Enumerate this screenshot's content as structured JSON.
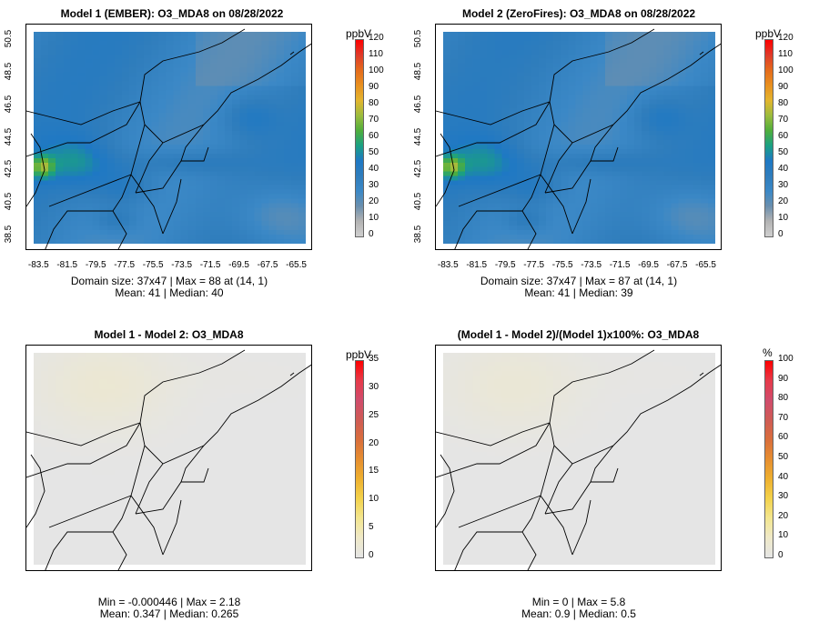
{
  "colors": {
    "scale_blue": [
      "#cfcfcf",
      "#b3b3b3",
      "#6a8fae",
      "#3b88c6",
      "#2f7dbc",
      "#1e78c4",
      "#1aa083",
      "#4fae3c",
      "#9cbc3d",
      "#e3b52e",
      "#e8901f",
      "#e46b1c",
      "#df3b2a",
      "#ff0000"
    ],
    "scale_diff": [
      "#e5e5e5",
      "#efe9c8",
      "#f3e68f",
      "#f3d24b",
      "#eeb02f",
      "#e68e30",
      "#d96e3c",
      "#cf5b55",
      "#d04c6c",
      "#e63a4a",
      "#ff0000"
    ]
  },
  "chart_data": [
    {
      "type": "heatmap",
      "title": "Model 1 (EMBER): O3_MDA8 on 08/28/2022",
      "unit": "ppbV",
      "x_ticks": [
        "-83.5",
        "-81.5",
        "-79.5",
        "-77.5",
        "-75.5",
        "-73.5",
        "-71.5",
        "-69.5",
        "-67.5",
        "-65.5"
      ],
      "y_ticks": [
        "38.5",
        "40.5",
        "42.5",
        "44.5",
        "46.5",
        "48.5",
        "50.5"
      ],
      "xlim": [
        -84,
        -65
      ],
      "ylim": [
        38,
        51
      ],
      "colorbar_ticks": [
        "0",
        "10",
        "20",
        "30",
        "40",
        "50",
        "60",
        "70",
        "80",
        "90",
        "100",
        "110",
        "120"
      ],
      "colorbar_range": [
        0,
        120
      ],
      "scale": "scale_blue",
      "field": "ember",
      "stats": [
        "Domain size: 37x47 | Max = 88 at (14, 1)",
        "Mean: 41 |  Median: 40"
      ]
    },
    {
      "type": "heatmap",
      "title": "Model 2 (ZeroFires): O3_MDA8 on 08/28/2022",
      "unit": "ppbV",
      "x_ticks": [
        "-83.5",
        "-81.5",
        "-79.5",
        "-77.5",
        "-75.5",
        "-73.5",
        "-71.5",
        "-69.5",
        "-67.5",
        "-65.5"
      ],
      "y_ticks": [
        "38.5",
        "40.5",
        "42.5",
        "44.5",
        "46.5",
        "48.5",
        "50.5"
      ],
      "xlim": [
        -84,
        -65
      ],
      "ylim": [
        38,
        51
      ],
      "colorbar_ticks": [
        "0",
        "10",
        "20",
        "30",
        "40",
        "50",
        "60",
        "70",
        "80",
        "90",
        "100",
        "110",
        "120"
      ],
      "colorbar_range": [
        0,
        120
      ],
      "scale": "scale_blue",
      "field": "zerofires",
      "stats": [
        "Domain size: 37x47 | Max = 87 at (14, 1)",
        "Mean: 41 |  Median: 39"
      ]
    },
    {
      "type": "heatmap",
      "title": "Model 1 - Model 2: O3_MDA8",
      "unit": "ppbV",
      "x_ticks": [],
      "y_ticks": [],
      "colorbar_ticks": [
        "0",
        "5",
        "10",
        "15",
        "20",
        "25",
        "30",
        "35"
      ],
      "colorbar_range": [
        0,
        35
      ],
      "scale": "scale_diff",
      "field": "diff",
      "stats": [
        "Min = -0.000446 | Max = 2.18",
        "Mean: 0.347 |  Median: 0.265"
      ]
    },
    {
      "type": "heatmap",
      "title": "(Model 1 - Model 2)/(Model 1)x100%: O3_MDA8",
      "unit": "%",
      "x_ticks": [],
      "y_ticks": [],
      "colorbar_ticks": [
        "0",
        "10",
        "20",
        "30",
        "40",
        "50",
        "60",
        "70",
        "80",
        "90",
        "100"
      ],
      "colorbar_range": [
        0,
        100
      ],
      "scale": "scale_diff",
      "field": "pct",
      "stats": [
        "Min = 0 | Max = 5.8",
        "Mean: 0.9 |  Median: 0.5"
      ]
    }
  ]
}
